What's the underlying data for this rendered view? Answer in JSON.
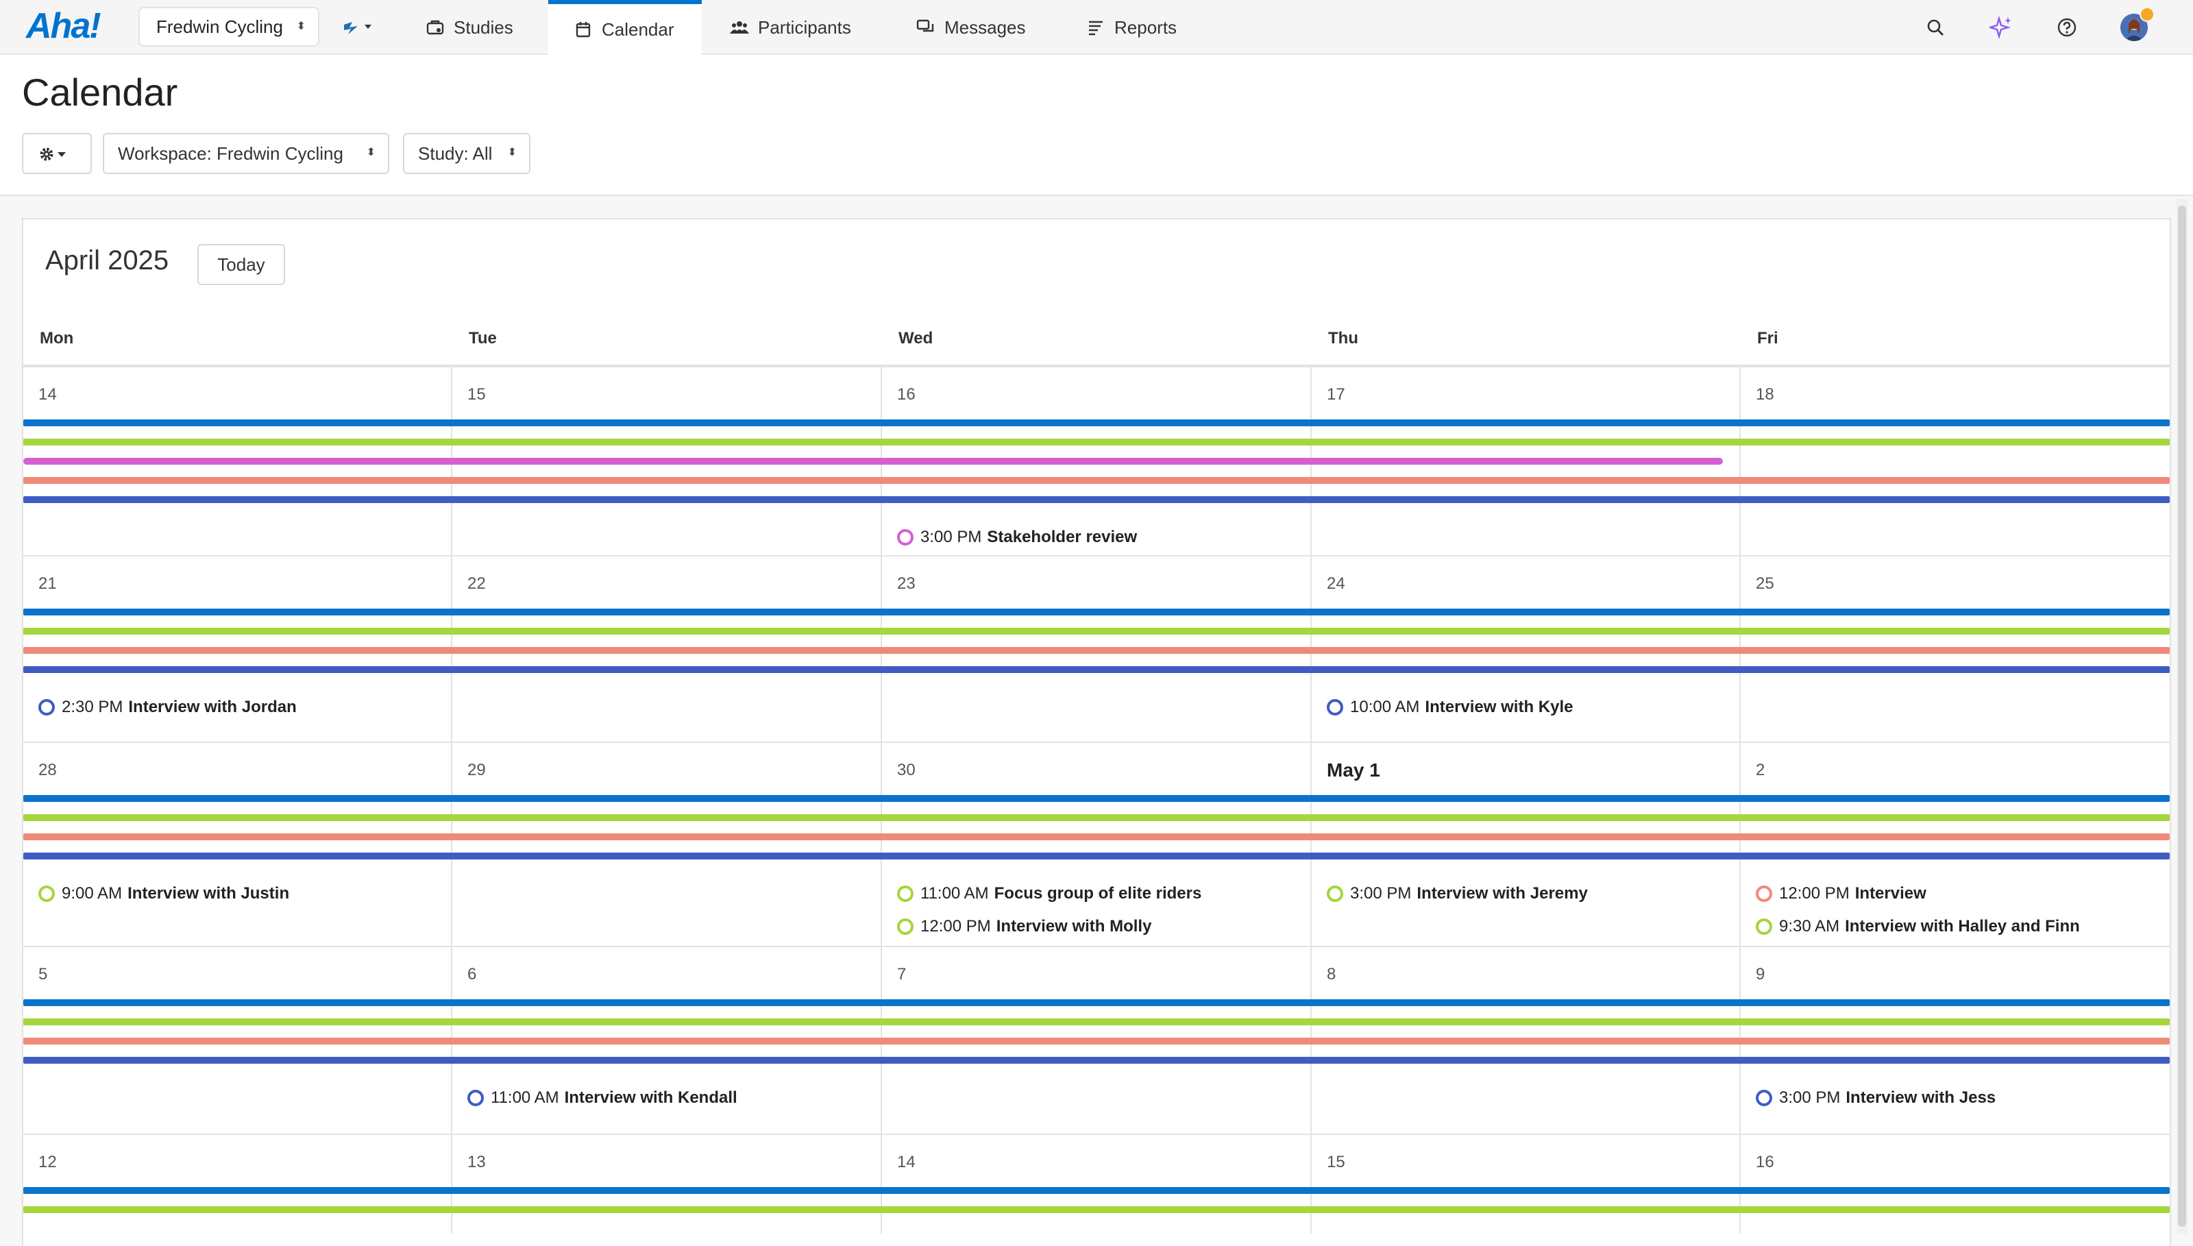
{
  "app": {
    "logo": "Aha!",
    "workspace_switcher": "Fredwin Cycling",
    "nav": [
      {
        "label": "Studies",
        "icon": "studies-icon"
      },
      {
        "label": "Calendar",
        "icon": "calendar-icon",
        "active": true
      },
      {
        "label": "Participants",
        "icon": "participants-icon"
      },
      {
        "label": "Messages",
        "icon": "messages-icon"
      },
      {
        "label": "Reports",
        "icon": "reports-icon"
      }
    ],
    "accent_color": "#0073cf"
  },
  "page": {
    "title": "Calendar",
    "filters": {
      "workspace": "Workspace: Fredwin Cycling",
      "study": "Study: All"
    }
  },
  "calendar": {
    "month_label": "April 2025",
    "today_label": "Today",
    "weekdays": [
      "Mon",
      "Tue",
      "Wed",
      "Thu",
      "Fri"
    ],
    "study_colors": {
      "blue": "#0a74cc",
      "green": "#a5d63b",
      "pink": "#d65fd0",
      "salmon": "#f08a78",
      "indigo": "#3f5cc4"
    },
    "weeks": [
      {
        "days": [
          "14",
          "15",
          "16",
          "17",
          "18"
        ],
        "bars": [
          "blue",
          "green",
          "pink",
          "salmon",
          "indigo"
        ],
        "events": [
          {
            "day": 2,
            "time": "3:00 PM",
            "title": "Stakeholder review",
            "color": "pink"
          }
        ]
      },
      {
        "days": [
          "21",
          "22",
          "23",
          "24",
          "25"
        ],
        "bars": [
          "blue",
          "green",
          "salmon",
          "indigo"
        ],
        "events": [
          {
            "day": 0,
            "time": "2:30 PM",
            "title": "Interview with Jordan",
            "color": "indigo"
          },
          {
            "day": 3,
            "time": "10:00 AM",
            "title": "Interview with Kyle",
            "color": "indigo"
          }
        ]
      },
      {
        "days": [
          "28",
          "29",
          "30",
          "May 1",
          "2"
        ],
        "bars": [
          "blue",
          "green",
          "salmon",
          "indigo"
        ],
        "events": [
          {
            "day": 0,
            "time": "9:00 AM",
            "title": "Interview with Justin",
            "color": "green"
          },
          {
            "day": 2,
            "time": "11:00 AM",
            "title": "Focus group of elite riders",
            "color": "green"
          },
          {
            "day": 2,
            "time": "12:00 PM",
            "title": "Interview with Molly",
            "color": "green"
          },
          {
            "day": 3,
            "time": "3:00 PM",
            "title": "Interview with Jeremy",
            "color": "green"
          },
          {
            "day": 4,
            "time": "12:00 PM",
            "title": "Interview",
            "color": "salmon"
          },
          {
            "day": 4,
            "time": "9:30 AM",
            "title": "Interview with Halley and Finn",
            "color": "green"
          }
        ]
      },
      {
        "days": [
          "5",
          "6",
          "7",
          "8",
          "9"
        ],
        "bars": [
          "blue",
          "green",
          "salmon",
          "indigo"
        ],
        "events": [
          {
            "day": 1,
            "time": "11:00 AM",
            "title": "Interview with Kendall",
            "color": "indigo"
          },
          {
            "day": 4,
            "time": "3:00 PM",
            "title": "Interview with Jess",
            "color": "indigo"
          }
        ]
      },
      {
        "days": [
          "12",
          "13",
          "14",
          "15",
          "16"
        ],
        "bars": [
          "blue",
          "green"
        ],
        "events": []
      }
    ]
  }
}
